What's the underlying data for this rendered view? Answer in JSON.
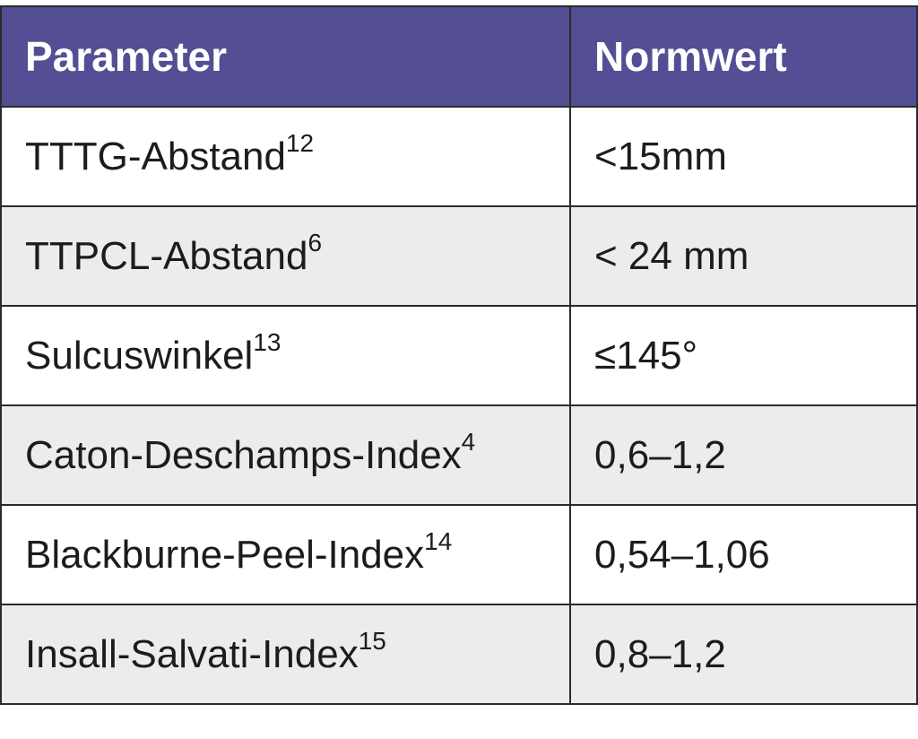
{
  "table": {
    "headers": [
      "Parameter",
      "Normwert"
    ],
    "rows": [
      {
        "parameter": "TTTG-Abstand",
        "ref": "12",
        "value": "<15mm"
      },
      {
        "parameter": "TTPCL-Abstand",
        "ref": "6",
        "value": "< 24 mm"
      },
      {
        "parameter": "Sulcuswinkel",
        "ref": "13",
        "value": "≤145°"
      },
      {
        "parameter": "Caton-Deschamps-Index",
        "ref": "4",
        "value": "0,6–1,2"
      },
      {
        "parameter": "Blackburne-Peel-Index",
        "ref": "14",
        "value": "0,54–1,06"
      },
      {
        "parameter": "Insall-Salvati-Index",
        "ref": "15",
        "value": "0,8–1,2"
      }
    ]
  },
  "colors": {
    "header_bg": "#544e94",
    "header_text": "#ffffff",
    "row_alt_bg": "#ececec",
    "border": "#2b2b2b"
  }
}
